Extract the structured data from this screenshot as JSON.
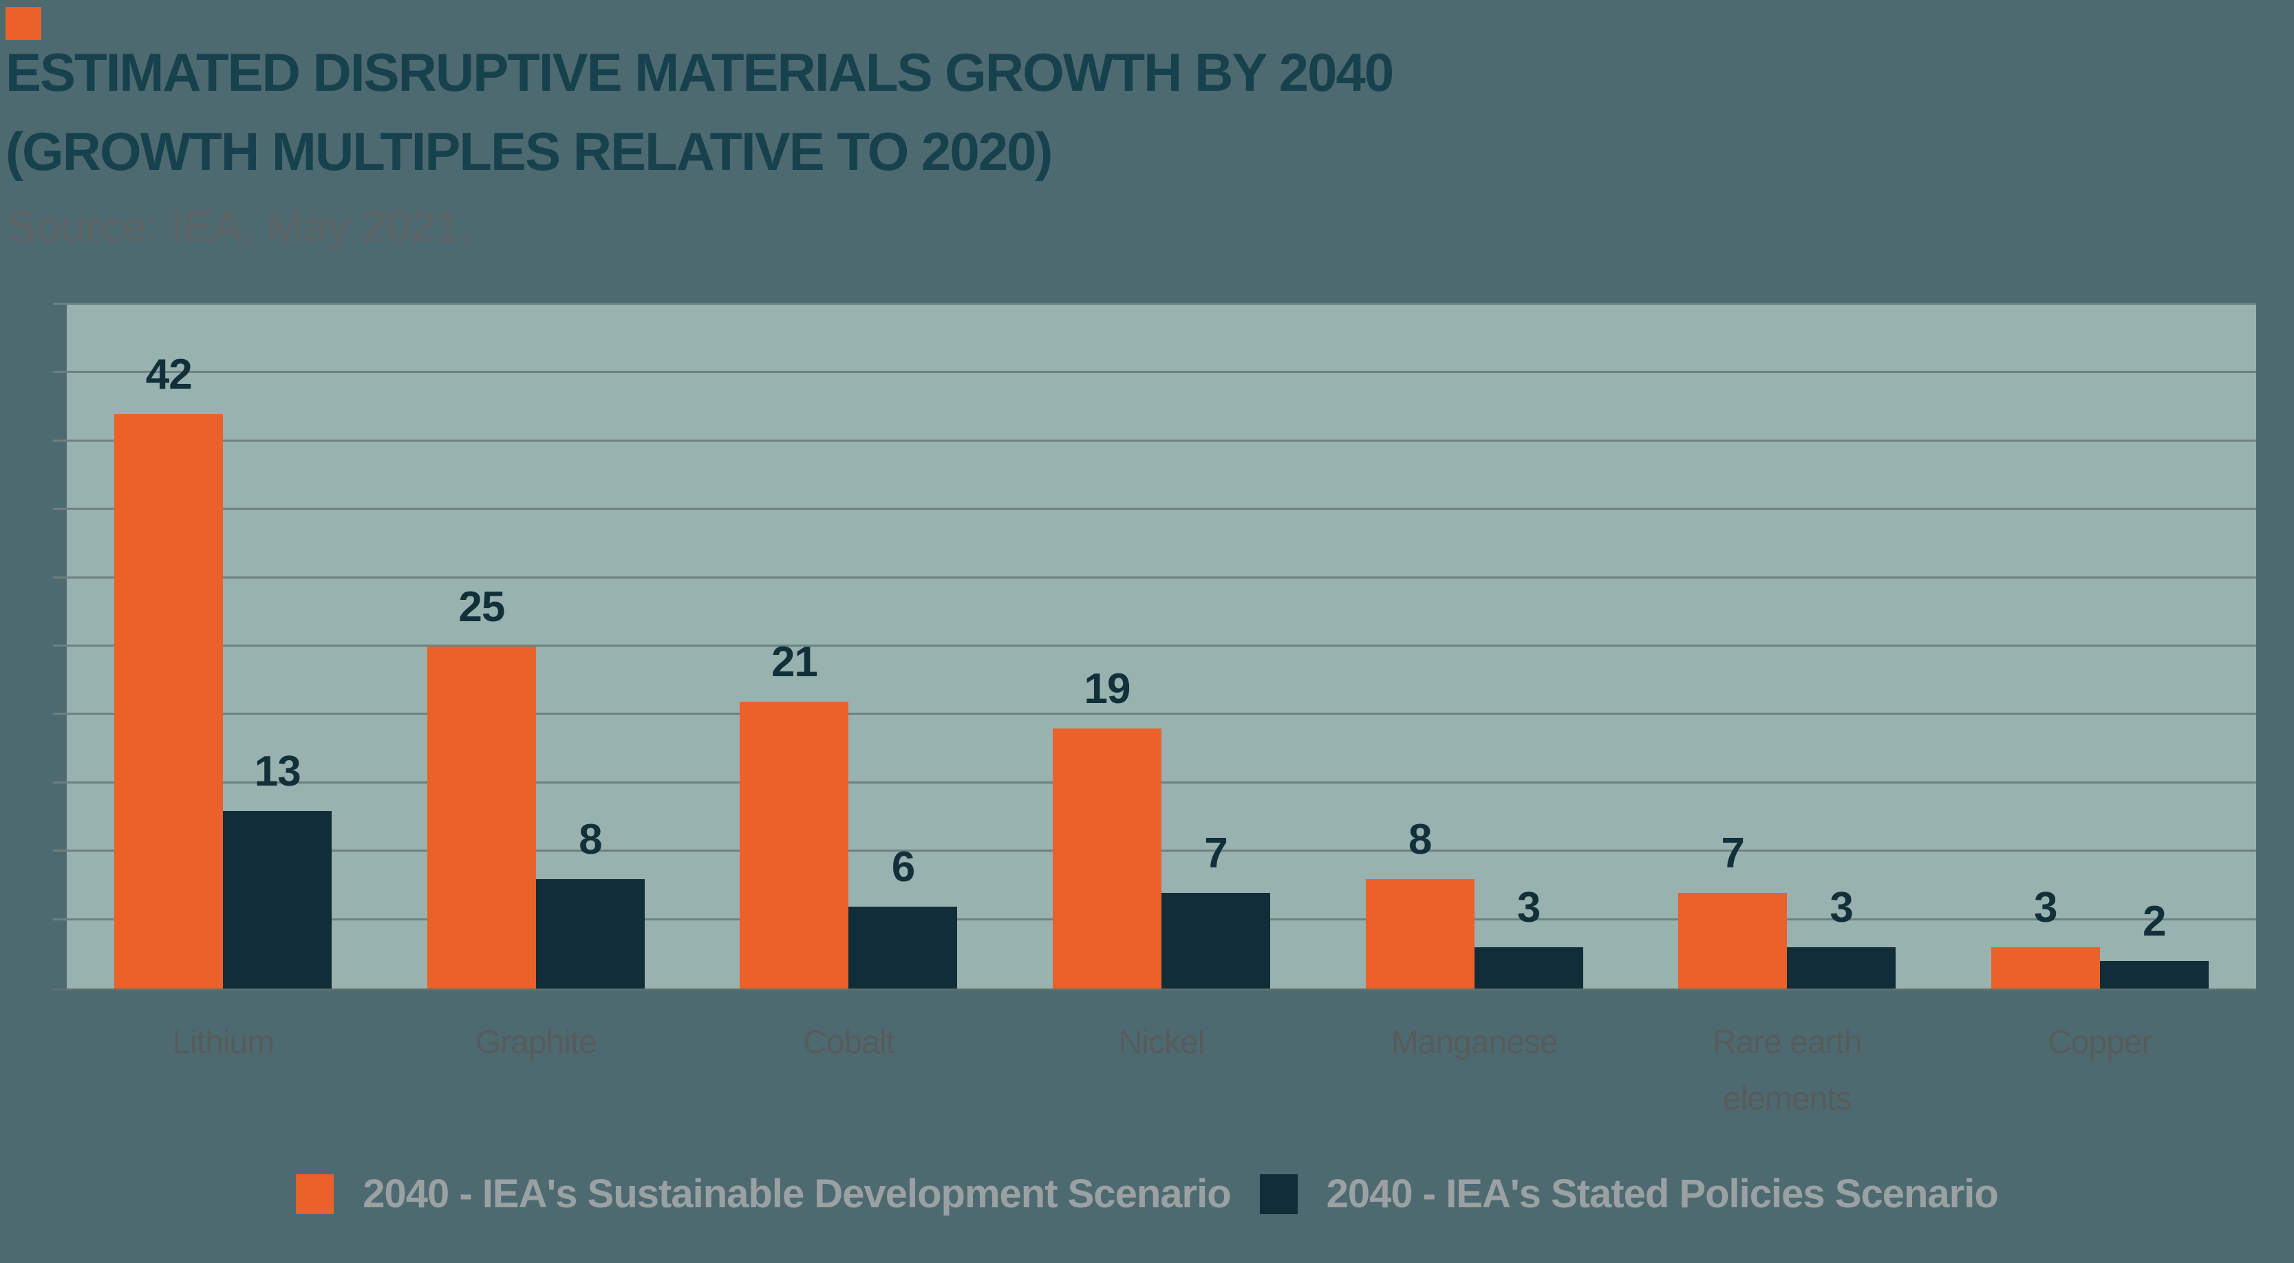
{
  "header": {
    "title_line1": "ESTIMATED DISRUPTIVE MATERIALS GROWTH BY 2040",
    "title_line2": "(GROWTH MULTIPLES RELATIVE TO 2020)",
    "source": "Source: IEA, May 2021."
  },
  "colors": {
    "background": "#4E6A71",
    "plot_background": "#98B2B0",
    "gridline": "#6F807E",
    "accent_orange": "#EB612A",
    "accent_dark_teal": "#112E38",
    "title_text": "#17414C",
    "value_label_text": "#123039",
    "axis_label_text": "#575B5B",
    "legend_text": "#9BA1A2",
    "source_text": "#5D6365"
  },
  "chart_data": {
    "type": "bar",
    "title": "ESTIMATED DISRUPTIVE MATERIALS GROWTH BY 2040 (GROWTH MULTIPLES RELATIVE TO 2020)",
    "source": "Source: IEA, May 2021.",
    "categories": [
      "Lithium",
      "Graphite",
      "Cobalt",
      "Nickel",
      "Manganese",
      "Rare earth elements",
      "Copper"
    ],
    "series": [
      {
        "name": "2040 - IEA's Sustainable Development Scenario",
        "color": "#EB612A",
        "values": [
          42,
          25,
          21,
          19,
          8,
          7,
          3
        ]
      },
      {
        "name": "2040 - IEA's Stated Policies Scenario",
        "color": "#112E38",
        "values": [
          13,
          8,
          6,
          7,
          3,
          3,
          2
        ]
      }
    ],
    "xlabel": "",
    "ylabel": "",
    "ylim": [
      0,
      50
    ],
    "gridline_step": 5,
    "grid": true,
    "y_axis_labels_visible": false,
    "value_labels": true,
    "legend_position": "bottom"
  }
}
